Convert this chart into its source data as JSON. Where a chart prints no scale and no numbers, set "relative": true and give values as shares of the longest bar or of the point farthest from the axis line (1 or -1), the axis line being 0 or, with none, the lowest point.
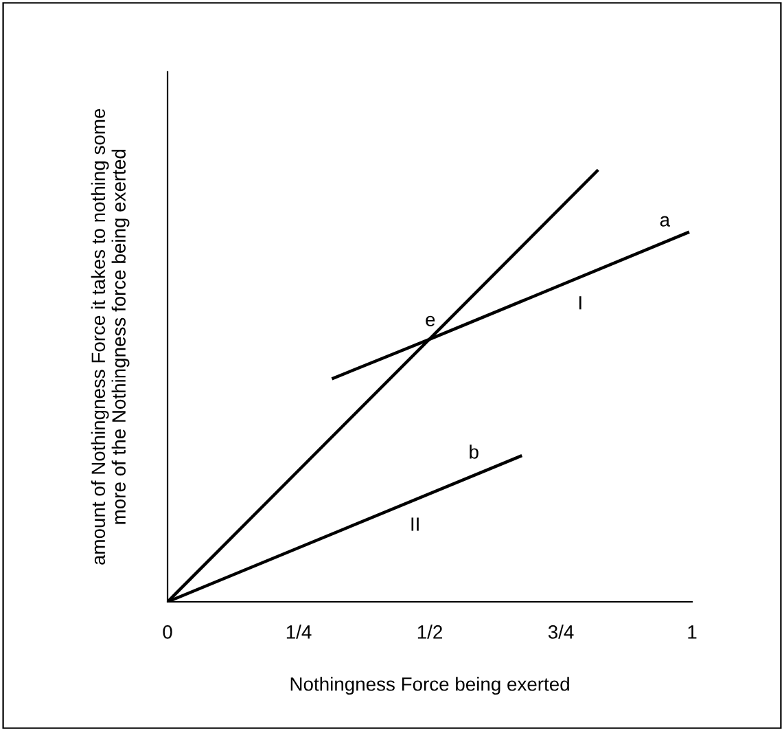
{
  "chart_data": {
    "type": "line",
    "relative": true,
    "xlabel": "Nothingness Force being exerted",
    "ylabel": "amount of Nothingness Force it takes to nothing some\nmore of the Nothingness force being exerted",
    "xlim": [
      0,
      1
    ],
    "xticks": [
      0,
      {
        "value": 0.25,
        "label": "1/4"
      },
      {
        "value": 0.5,
        "label": "1/2"
      },
      {
        "value": 0.75,
        "label": "3/4"
      },
      1
    ],
    "series": [
      {
        "color": "#000000",
        "x": [
          0,
          0.819
        ],
        "values": [
          0,
          1.0
        ]
      },
      {
        "color": "#000000",
        "x": [
          0.316,
          0.501,
          0.992
        ],
        "values": [
          0.519,
          0.61,
          0.857
        ]
      },
      {
        "color": "#000000",
        "x": [
          0,
          0.673
        ],
        "values": [
          0,
          0.338
        ]
      }
    ],
    "annotations": [
      {
        "text": "a",
        "x": 0.948,
        "y": 0.835
      },
      {
        "text": "I",
        "x": 0.787,
        "y": 0.754
      },
      {
        "text": "e",
        "x": 0.501,
        "y": 0.61
      },
      {
        "text": "b",
        "x": 0.584,
        "y": 0.293
      },
      {
        "text": "II",
        "x": 0.472,
        "y": 0.237
      }
    ],
    "grid": false,
    "legend": false,
    "marker": "none",
    "line_style": "solid"
  }
}
